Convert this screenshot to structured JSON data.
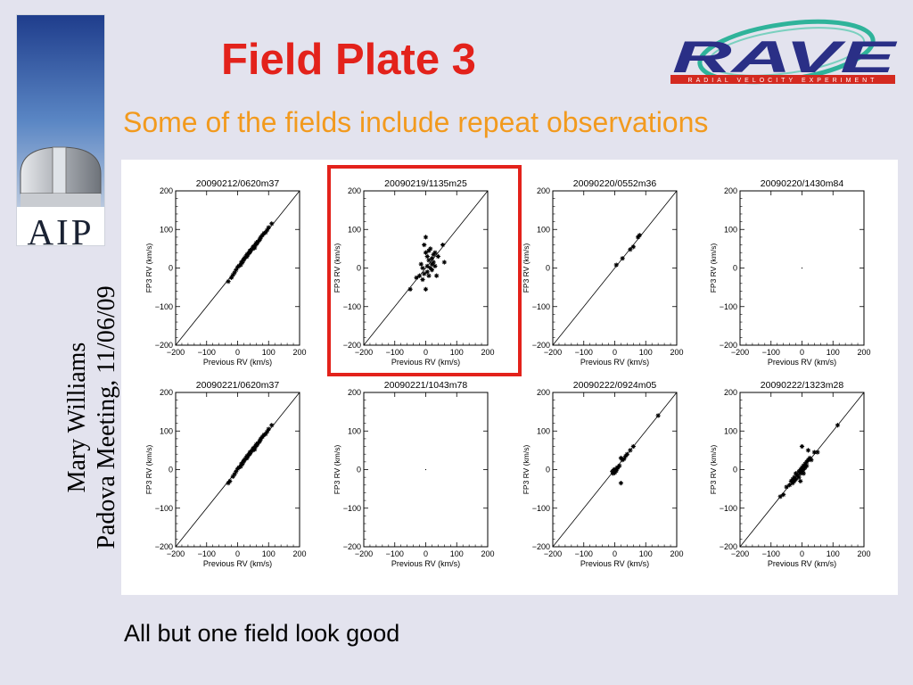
{
  "slide": {
    "title": "Field Plate 3",
    "subtitle": "Some of the fields include repeat observations",
    "footer_note": "All but one field look good",
    "side_author": "Mary Williams",
    "side_meeting": "Padova Meeting, 11/06/09",
    "aip_logo_text": "AIP",
    "rave_logo_text": "RAVE",
    "rave_logo_tagline": "RADIAL VELOCITY EXPERIMENT"
  },
  "colors": {
    "background": "#e3e3ee",
    "title": "#e3221b",
    "subtitle": "#f29a1e",
    "highlight_box": "#e3221b",
    "rave_blue": "#2a2f86",
    "rave_red": "#d42a20",
    "rave_ring": "#2fb39a"
  },
  "chart_data": [
    {
      "type": "scatter",
      "title": "20090212/0620m37",
      "xlabel": "Previous RV (km/s)",
      "ylabel": "FP3 RV (km/s)",
      "xlim": [
        -200,
        200
      ],
      "ylim": [
        -200,
        200
      ],
      "xticks": [
        -200,
        -100,
        0,
        100,
        200
      ],
      "yticks": [
        -200,
        -100,
        0,
        100,
        200
      ],
      "reference_line": "y=x",
      "highlighted": false,
      "points": [
        [
          -20,
          -25
        ],
        [
          -15,
          -18
        ],
        [
          -10,
          -12
        ],
        [
          -5,
          -5
        ],
        [
          0,
          2
        ],
        [
          5,
          6
        ],
        [
          10,
          8
        ],
        [
          12,
          15
        ],
        [
          15,
          14
        ],
        [
          18,
          20
        ],
        [
          20,
          22
        ],
        [
          22,
          25
        ],
        [
          25,
          28
        ],
        [
          28,
          30
        ],
        [
          30,
          35
        ],
        [
          32,
          33
        ],
        [
          35,
          38
        ],
        [
          38,
          40
        ],
        [
          40,
          42
        ],
        [
          42,
          45
        ],
        [
          45,
          48
        ],
        [
          48,
          50
        ],
        [
          50,
          55
        ],
        [
          52,
          53
        ],
        [
          55,
          58
        ],
        [
          58,
          60
        ],
        [
          60,
          65
        ],
        [
          62,
          63
        ],
        [
          65,
          68
        ],
        [
          70,
          72
        ],
        [
          72,
          75
        ],
        [
          75,
          80
        ],
        [
          80,
          85
        ],
        [
          85,
          90
        ],
        [
          90,
          92
        ],
        [
          95,
          98
        ],
        [
          100,
          105
        ],
        [
          110,
          115
        ],
        [
          -30,
          -35
        ],
        [
          30,
          30
        ],
        [
          40,
          45
        ],
        [
          55,
          52
        ]
      ]
    },
    {
      "type": "scatter",
      "title": "20090219/1135m25",
      "xlabel": "Previous RV (km/s)",
      "ylabel": "FP3 RV (km/s)",
      "xlim": [
        -200,
        200
      ],
      "ylim": [
        -200,
        200
      ],
      "xticks": [
        -200,
        -100,
        0,
        100,
        200
      ],
      "yticks": [
        -200,
        -100,
        0,
        100,
        200
      ],
      "reference_line": "y=x",
      "highlighted": true,
      "points": [
        [
          -50,
          -55
        ],
        [
          -30,
          -25
        ],
        [
          -20,
          -20
        ],
        [
          -15,
          10
        ],
        [
          -10,
          -30
        ],
        [
          -5,
          60
        ],
        [
          0,
          80
        ],
        [
          0,
          40
        ],
        [
          5,
          30
        ],
        [
          5,
          -10
        ],
        [
          10,
          20
        ],
        [
          10,
          -20
        ],
        [
          15,
          50
        ],
        [
          15,
          0
        ],
        [
          20,
          10
        ],
        [
          20,
          -5
        ],
        [
          25,
          35
        ],
        [
          25,
          15
        ],
        [
          30,
          5
        ],
        [
          35,
          -20
        ],
        [
          0,
          -55
        ],
        [
          -10,
          0
        ],
        [
          10,
          45
        ],
        [
          40,
          30
        ],
        [
          55,
          60
        ],
        [
          60,
          15
        ],
        [
          30,
          40
        ],
        [
          -5,
          -15
        ],
        [
          20,
          25
        ],
        [
          5,
          5
        ]
      ]
    },
    {
      "type": "scatter",
      "title": "20090220/0552m36",
      "xlabel": "Previous RV (km/s)",
      "ylabel": "FP3 RV (km/s)",
      "xlim": [
        -200,
        200
      ],
      "ylim": [
        -200,
        200
      ],
      "xticks": [
        -200,
        -100,
        0,
        100,
        200
      ],
      "yticks": [
        -200,
        -100,
        0,
        100,
        200
      ],
      "reference_line": "y=x",
      "highlighted": false,
      "points": [
        [
          5,
          8
        ],
        [
          25,
          25
        ],
        [
          50,
          48
        ],
        [
          60,
          55
        ],
        [
          75,
          80
        ],
        [
          80,
          85
        ]
      ]
    },
    {
      "type": "scatter",
      "title": "20090220/1430m84",
      "xlabel": "Previous RV (km/s)",
      "ylabel": "FP3 RV (km/s)",
      "xlim": [
        -200,
        200
      ],
      "ylim": [
        -200,
        200
      ],
      "xticks": [
        -200,
        -100,
        0,
        100,
        200
      ],
      "yticks": [
        -200,
        -100,
        0,
        100,
        200
      ],
      "reference_line": "none",
      "highlighted": false,
      "points": [
        [
          0,
          0
        ]
      ]
    },
    {
      "type": "scatter",
      "title": "20090221/0620m37",
      "xlabel": "Previous RV (km/s)",
      "ylabel": "FP3 RV (km/s)",
      "xlim": [
        -200,
        200
      ],
      "ylim": [
        -200,
        200
      ],
      "xticks": [
        -200,
        -100,
        0,
        100,
        200
      ],
      "yticks": [
        -200,
        -100,
        0,
        100,
        200
      ],
      "reference_line": "y=x",
      "highlighted": false,
      "points": [
        [
          -25,
          -30
        ],
        [
          -15,
          -18
        ],
        [
          -10,
          -12
        ],
        [
          -5,
          -5
        ],
        [
          0,
          2
        ],
        [
          5,
          6
        ],
        [
          10,
          8
        ],
        [
          12,
          15
        ],
        [
          15,
          14
        ],
        [
          18,
          20
        ],
        [
          20,
          22
        ],
        [
          22,
          25
        ],
        [
          25,
          28
        ],
        [
          28,
          30
        ],
        [
          30,
          35
        ],
        [
          32,
          33
        ],
        [
          35,
          38
        ],
        [
          38,
          40
        ],
        [
          40,
          42
        ],
        [
          42,
          45
        ],
        [
          45,
          48
        ],
        [
          48,
          50
        ],
        [
          50,
          55
        ],
        [
          52,
          53
        ],
        [
          55,
          58
        ],
        [
          58,
          60
        ],
        [
          60,
          65
        ],
        [
          62,
          63
        ],
        [
          65,
          68
        ],
        [
          70,
          72
        ],
        [
          72,
          75
        ],
        [
          75,
          80
        ],
        [
          80,
          85
        ],
        [
          85,
          90
        ],
        [
          90,
          92
        ],
        [
          95,
          98
        ],
        [
          100,
          105
        ],
        [
          110,
          115
        ],
        [
          -30,
          -35
        ],
        [
          30,
          30
        ],
        [
          40,
          45
        ],
        [
          55,
          52
        ]
      ]
    },
    {
      "type": "scatter",
      "title": "20090221/1043m78",
      "xlabel": "Previous RV (km/s)",
      "ylabel": "FP3 RV (km/s)",
      "xlim": [
        -200,
        200
      ],
      "ylim": [
        -200,
        200
      ],
      "xticks": [
        -200,
        -100,
        0,
        100,
        200
      ],
      "yticks": [
        -200,
        -100,
        0,
        100,
        200
      ],
      "reference_line": "none",
      "highlighted": false,
      "points": [
        [
          0,
          0
        ]
      ]
    },
    {
      "type": "scatter",
      "title": "20090222/0924m05",
      "xlabel": "Previous RV (km/s)",
      "ylabel": "FP3 RV (km/s)",
      "xlim": [
        -200,
        200
      ],
      "ylim": [
        -200,
        200
      ],
      "xticks": [
        -200,
        -100,
        0,
        100,
        200
      ],
      "yticks": [
        -200,
        -100,
        0,
        100,
        200
      ],
      "reference_line": "y=x",
      "highlighted": false,
      "points": [
        [
          -5,
          -10
        ],
        [
          0,
          -5
        ],
        [
          -3,
          0
        ],
        [
          2,
          0
        ],
        [
          5,
          2
        ],
        [
          5,
          -3
        ],
        [
          10,
          5
        ],
        [
          15,
          10
        ],
        [
          20,
          30
        ],
        [
          25,
          25
        ],
        [
          30,
          28
        ],
        [
          35,
          35
        ],
        [
          40,
          40
        ],
        [
          50,
          50
        ],
        [
          60,
          60
        ],
        [
          20,
          -35
        ],
        [
          140,
          140
        ],
        [
          0,
          -8
        ],
        [
          -8,
          -5
        ],
        [
          8,
          5
        ]
      ]
    },
    {
      "type": "scatter",
      "title": "20090222/1323m28",
      "xlabel": "Previous RV (km/s)",
      "ylabel": "FP3 RV (km/s)",
      "xlim": [
        -200,
        200
      ],
      "ylim": [
        -200,
        200
      ],
      "xticks": [
        -200,
        -100,
        0,
        100,
        200
      ],
      "yticks": [
        -200,
        -100,
        0,
        100,
        200
      ],
      "reference_line": "y=x",
      "highlighted": false,
      "points": [
        [
          -70,
          -70
        ],
        [
          -60,
          -65
        ],
        [
          -50,
          -45
        ],
        [
          -40,
          -40
        ],
        [
          -35,
          -30
        ],
        [
          -30,
          -35
        ],
        [
          -25,
          -20
        ],
        [
          -20,
          -25
        ],
        [
          -20,
          -10
        ],
        [
          -15,
          -15
        ],
        [
          -10,
          -5
        ],
        [
          -10,
          -20
        ],
        [
          -5,
          -10
        ],
        [
          -5,
          0
        ],
        [
          0,
          -5
        ],
        [
          0,
          5
        ],
        [
          5,
          10
        ],
        [
          5,
          0
        ],
        [
          10,
          15
        ],
        [
          10,
          5
        ],
        [
          15,
          20
        ],
        [
          20,
          25
        ],
        [
          25,
          30
        ],
        [
          30,
          25
        ],
        [
          40,
          45
        ],
        [
          50,
          45
        ],
        [
          0,
          60
        ],
        [
          -5,
          -30
        ],
        [
          20,
          50
        ],
        [
          115,
          115
        ],
        [
          -25,
          -30
        ],
        [
          15,
          10
        ],
        [
          -30,
          -25
        ],
        [
          5,
          -10
        ]
      ]
    }
  ]
}
